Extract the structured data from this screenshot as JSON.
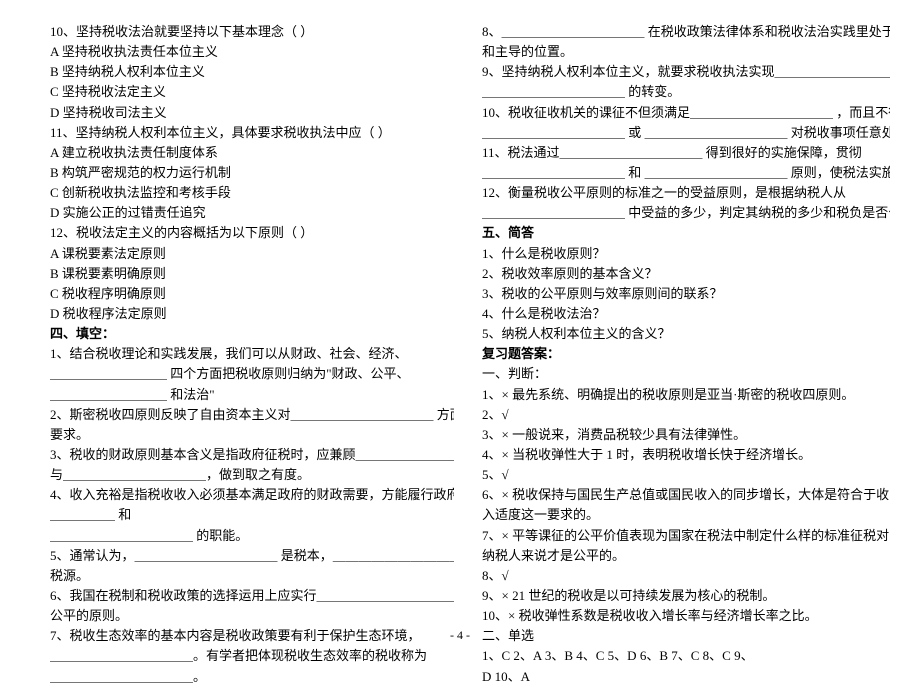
{
  "left": {
    "q10": {
      "stem": "10、坚持税收法治就要坚持以下基本理念（  ）",
      "A": "A    坚持税收执法责任本位主义",
      "B": "B    坚持纳税人权利本位主义",
      "C": "C    坚持税收法定主义",
      "D": "D    坚持税收司法主义"
    },
    "q11": {
      "stem": "11、坚持纳税人权利本位主义，具体要求税收执法中应（  ）",
      "A": "A    建立税收执法责任制度体系",
      "B": "B    构筑严密规范的权力运行机制",
      "C": "C    创新税收执法监控和考核手段",
      "D": "D    实施公正的过错责任追究"
    },
    "q12": {
      "stem": "12、税收法定主义的内容概括为以下原则（  ）",
      "A": "A    课税要素法定原则",
      "B": "B    课税要素明确原则",
      "C": "C    税收程序明确原则",
      "D": "D    税收程序法定原则"
    },
    "sec4_title": "四、填空：",
    "f1a": "1、结合税收理论和实践发展，我们可以从财政、社会、经济、",
    "f1b": "＿＿＿＿＿＿＿＿＿ 四个方面把税收原则归纳为\"财政、公平、",
    "f1c": "＿＿＿＿＿＿＿＿＿ 和法治\"",
    "f2a": "2、斯密税收四原则反映了自由资本主义对＿＿＿＿＿＿＿＿＿＿＿ 方面的基本",
    "f2b": "要求。",
    "f3a": "3、税收的财政原则基本含义是指政府征税时，应兼顾＿＿＿＿＿＿＿＿＿＿＿",
    "f3b": "与＿＿＿＿＿＿＿＿＿＿＿，做到取之有度。",
    "f4a": "4、收入充裕是指税收收入必须基本满足政府的财政需要，方能履行政府＿",
    "f4b": "＿＿＿＿＿ 和",
    "f4c": "＿＿＿＿＿＿＿＿＿＿＿ 的职能。",
    "f5a": "5、通常认为，＿＿＿＿＿＿＿＿＿＿＿ 是税本，＿＿＿＿＿＿＿＿＿＿＿＿＿＿ 是",
    "f5b": "税源。",
    "f6a": "6、我国在税制和税收政策的选择运用上应实行＿＿＿＿＿＿＿＿＿＿＿、兼顾",
    "f6b": "公平的原则。",
    "f7a": "7、税收生态效率的基本内容是税收政策要有利于保护生态环境，",
    "f7b": "＿＿＿＿＿＿＿＿＿＿＿。有学者把体现税收生态效率的税收称为",
    "f7c": "＿＿＿＿＿＿＿＿＿＿＿。"
  },
  "right": {
    "f8a": "8、＿＿＿＿＿＿＿＿＿＿＿ 在税收政策法律体系和税收法治实践里处于核心",
    "f8b": "和主导的位置。",
    "f9a": "9、坚持纳税人权利本位主义，就要求税收执法实现＿＿＿＿＿＿＿＿＿＿＿  向",
    "f9b": "＿＿＿＿＿＿＿＿＿＿＿ 的转变。",
    "f10a": "10、税收征收机关的课征不但须满足＿＿＿＿＿＿＿＿＿＿＿ ，而且不得",
    "f10b": "＿＿＿＿＿＿＿＿＿＿＿  或  ＿＿＿＿＿＿＿＿＿＿＿  对税收事项任意处理。",
    "f11a": "11、税法通过＿＿＿＿＿＿＿＿＿＿＿ 得到很好的实施保障，贯彻",
    "f11b": "＿＿＿＿＿＿＿＿＿＿＿  和  ＿＿＿＿＿＿＿＿＿＿＿  原则，使税法实施有坚强的后盾。",
    "f12a": "12、衡量税收公平原则的标准之一的受益原则，是根据纳税人从",
    "f12b": "＿＿＿＿＿＿＿＿＿＿＿ 中受益的多少，判定其纳税的多少和税负是否公平。",
    "sec5_title": "五、简答",
    "s1": "1、什么是税收原则？",
    "s2": "2、税收效率原则的基本含义？",
    "s3": "3、税收的公平原则与效率原则间的联系？",
    "s4": "4、什么是税收法治？",
    "s5": "5、纳税人权利本位主义的含义？",
    "ans_title": "    复习题答案：",
    "ans_pb": "一、判断：",
    "a1": "1、× 最先系统、明确提出的税收原则是亚当·斯密的税收四原则。",
    "a2": "2、√",
    "a3": "3、× 一般说来，消费品税较少具有法律弹性。",
    "a4": "4、× 当税收弹性大于 1 时，表明税收增长快于经济增长。",
    "a5": "5、√",
    "a6a": "6、× 税收保持与国民生产总值或国民收入的同步增长，大体是符合于收",
    "a6b": "入适度这一要求的。",
    "a7a": "7、× 平等课征的公平价值表现为国家在税法中制定什么样的标准征税对",
    "a7b": "纳税人来说才是公平的。",
    "a8": "8、√",
    "a9": "9、× 21 世纪的税收是以可持续发展为核心的税制。",
    "a10": "10、× 税收弹性系数是税收收入增长率与经济增长率之比。",
    "ans_dx": "二、单选",
    "dx1": "1、C    2、A    3、B    4、C    5、D    6、B    7、C    8、C    9、",
    "dx2": "D    10、A"
  },
  "footer": "- 4 -"
}
